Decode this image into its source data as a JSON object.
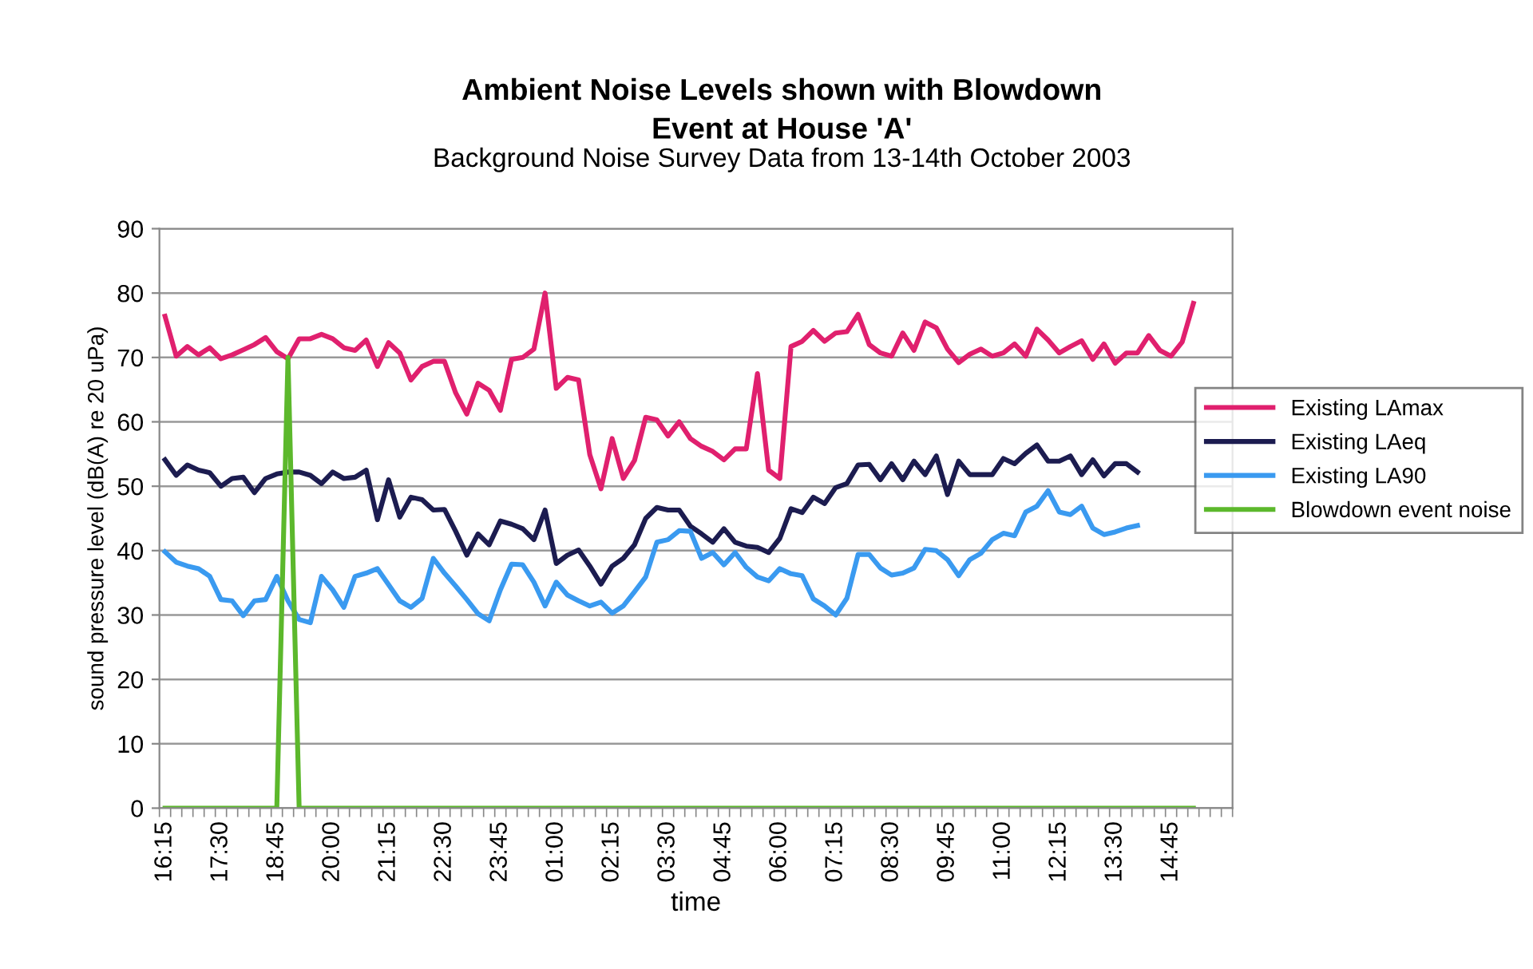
{
  "chart_data": {
    "type": "line",
    "title": "Ambient Noise Levels shown with Blowdown\nEvent at House 'A'",
    "subtitle": "Background Noise Survey Data from 13-14th October 2003",
    "xlabel": "time",
    "ylabel": "sound pressure level (dB(A) re 20 uPa)",
    "categories": [
      "16:15",
      null,
      null,
      null,
      null,
      "17:30",
      null,
      null,
      null,
      null,
      "18:45",
      null,
      null,
      null,
      null,
      "20:00",
      null,
      null,
      null,
      null,
      "21:15",
      null,
      null,
      null,
      null,
      "22:30",
      null,
      null,
      null,
      null,
      "23:45",
      null,
      null,
      null,
      null,
      "01:00",
      null,
      null,
      null,
      null,
      "02:15",
      null,
      null,
      null,
      null,
      "03:30",
      null,
      null,
      null,
      null,
      "04:45",
      null,
      null,
      null,
      null,
      "06:00",
      null,
      null,
      null,
      null,
      "07:15",
      null,
      null,
      null,
      null,
      "08:30",
      null,
      null,
      null,
      null,
      "09:45",
      null,
      null,
      null,
      null,
      "11:00",
      null,
      null,
      null,
      null,
      "12:15",
      null,
      null,
      null,
      null,
      "13:30",
      null,
      null,
      null,
      null,
      "14:45",
      null,
      null,
      null,
      null,
      null
    ],
    "series": [
      {
        "name": "Existing LAmax",
        "color": "#e0206e",
        "values": [
          76.4,
          70.2,
          71.7,
          70.4,
          71.5,
          69.8,
          70.4,
          71.2,
          72,
          73.1,
          70.9,
          69.8,
          72.9,
          72.9,
          73.6,
          72.9,
          71.5,
          71.1,
          72.7,
          68.6,
          72.3,
          70.7,
          66.5,
          68.6,
          69.4,
          69.4,
          64.5,
          61.2,
          66,
          64.9,
          61.8,
          69.7,
          70,
          71.3,
          80,
          65.2,
          66.9,
          66.5,
          54.9,
          49.6,
          57.4,
          51.2,
          54,
          60.7,
          60.3,
          57.8,
          60,
          57.4,
          56.2,
          55.4,
          54.1,
          55.8,
          55.8,
          67.5,
          52.5,
          51.2,
          71.7,
          72.5,
          74.2,
          72.5,
          73.8,
          74,
          76.7,
          72,
          70.7,
          70.2,
          73.8,
          71.1,
          75.5,
          74.6,
          71.3,
          69.2,
          70.5,
          71.3,
          70.2,
          70.7,
          72.1,
          70.2,
          74.4,
          72.7,
          70.7,
          71.7,
          72.6,
          69.7,
          72.1,
          69.1,
          70.7,
          70.7,
          73.4,
          71.1,
          70.2,
          72.4,
          78.4,
          null,
          null,
          null
        ]
      },
      {
        "name": "Existing LAeq",
        "color": "#1c1c50",
        "values": [
          54.1,
          51.7,
          53.3,
          52.5,
          52.1,
          50,
          51.2,
          51.4,
          49,
          51.2,
          51.9,
          52.2,
          52.2,
          51.7,
          50.4,
          52.2,
          51.2,
          51.4,
          52.5,
          44.8,
          51,
          45.2,
          48.3,
          47.9,
          46.3,
          46.4,
          43,
          39.3,
          42.6,
          40.9,
          44.6,
          44.1,
          43.4,
          41.7,
          46.3,
          38,
          39.3,
          40.1,
          37.6,
          34.8,
          37.6,
          38.8,
          40.9,
          45,
          46.7,
          46.3,
          46.3,
          43.8,
          42.6,
          41.3,
          43.4,
          41.3,
          40.7,
          40.5,
          39.7,
          41.9,
          46.5,
          45.9,
          48.3,
          47.3,
          49.8,
          50.4,
          53.3,
          53.4,
          51,
          53.5,
          51,
          53.9,
          51.8,
          54.7,
          48.7,
          53.9,
          51.8,
          51.8,
          51.8,
          54.3,
          53.5,
          55.1,
          56.4,
          53.9,
          53.9,
          54.7,
          51.8,
          54.1,
          51.6,
          53.5,
          53.5,
          52.2,
          null,
          null,
          null,
          null,
          null,
          null,
          null,
          null
        ]
      },
      {
        "name": "Existing LA90",
        "color": "#3a9af0",
        "values": [
          39.8,
          38.2,
          37.6,
          37.2,
          36,
          32.4,
          32.2,
          29.9,
          32.2,
          32.4,
          36,
          32.2,
          29.3,
          28.8,
          36,
          33.9,
          31.2,
          36,
          36.5,
          37.2,
          34.7,
          32.2,
          31.2,
          32.6,
          38.8,
          36.5,
          34.5,
          32.4,
          30.2,
          29.1,
          33.9,
          37.9,
          37.8,
          35.1,
          31.4,
          35.1,
          33.1,
          32.2,
          31.4,
          32,
          30.3,
          31.4,
          33.6,
          35.9,
          41.3,
          41.7,
          43.1,
          43,
          38.8,
          39.7,
          37.8,
          39.7,
          37.4,
          35.9,
          35.3,
          37.2,
          36.4,
          36.1,
          32.5,
          31.4,
          30,
          32.6,
          39.4,
          39.4,
          37.3,
          36.2,
          36.5,
          37.3,
          40.2,
          40,
          38.6,
          36.1,
          38.6,
          39.6,
          41.7,
          42.7,
          42.3,
          46,
          46.9,
          49.3,
          46,
          45.6,
          46.9,
          43.5,
          42.5,
          42.9,
          43.5,
          43.9,
          null,
          null,
          null,
          null,
          null,
          null,
          null,
          null
        ]
      },
      {
        "name": "Blowdown event noise",
        "color": "#5cb82c",
        "values": [
          0,
          0,
          0,
          0,
          0,
          0,
          0,
          0,
          0,
          0,
          0,
          70,
          0,
          0,
          0,
          0,
          0,
          0,
          0,
          0,
          0,
          0,
          0,
          0,
          0,
          0,
          0,
          0,
          0,
          0,
          0,
          0,
          0,
          0,
          0,
          0,
          0,
          0,
          0,
          0,
          0,
          0,
          0,
          0,
          0,
          0,
          0,
          0,
          0,
          0,
          0,
          0,
          0,
          0,
          0,
          0,
          0,
          0,
          0,
          0,
          0,
          0,
          0,
          0,
          0,
          0,
          0,
          0,
          0,
          0,
          0,
          0,
          0,
          0,
          0,
          0,
          0,
          0,
          0,
          0,
          0,
          0,
          0,
          0,
          0,
          0,
          0,
          0,
          0,
          0,
          0,
          0,
          0,
          null,
          null,
          null
        ]
      }
    ],
    "ylim": [
      0,
      90
    ],
    "yticks": [
      0,
      10,
      20,
      30,
      40,
      50,
      60,
      70,
      80,
      90
    ],
    "grid": "y",
    "legend": "right",
    "marker": "none",
    "line_style": "solid"
  }
}
